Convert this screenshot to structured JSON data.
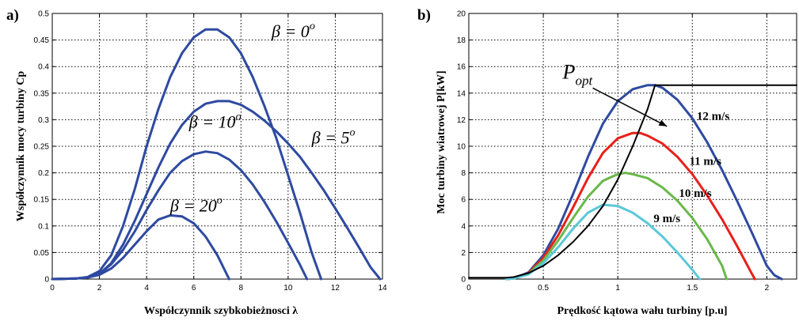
{
  "chart_data": [
    {
      "panel": "a)",
      "type": "line",
      "xlabel": "Współczynnik szybkobieżnosci  λ",
      "ylabel": "Współczynnik mocy turbiny Cp",
      "xlim": [
        0,
        14
      ],
      "ylim": [
        0,
        0.5
      ],
      "xticks": [
        0,
        2,
        4,
        6,
        8,
        10,
        12,
        14
      ],
      "yticks": [
        0,
        0.05,
        0.1,
        0.15,
        0.2,
        0.25,
        0.3,
        0.35,
        0.4,
        0.45,
        0.5
      ],
      "ytick_labels": [
        "0",
        "0.05",
        "0.1",
        "0.15",
        "0.2",
        "0.25",
        "0.3",
        "0.35",
        "0.4",
        "0.45",
        "0.5"
      ],
      "grid": true,
      "line_color": "#2e4aa0",
      "annotations": [
        {
          "text": "β = 0",
          "sup": "o",
          "x": 9.3,
          "y": 0.455
        },
        {
          "text": "β = 10",
          "sup": "o",
          "x": 5.8,
          "y": 0.285
        },
        {
          "text": "β = 5",
          "sup": "o",
          "x": 11.0,
          "y": 0.255
        },
        {
          "text": "β = 20",
          "sup": "o",
          "x": 5.0,
          "y": 0.127
        }
      ],
      "series": [
        {
          "x": [
            0,
            1,
            1.5,
            2,
            2.5,
            3,
            3.5,
            4,
            4.5,
            5,
            5.5,
            6,
            6.5,
            7,
            7.5,
            8,
            8.5,
            9,
            9.5,
            10,
            10.5,
            11,
            11.4
          ],
          "values": [
            0,
            0.001,
            0.004,
            0.015,
            0.045,
            0.1,
            0.17,
            0.25,
            0.32,
            0.38,
            0.425,
            0.455,
            0.47,
            0.47,
            0.455,
            0.425,
            0.38,
            0.325,
            0.265,
            0.195,
            0.125,
            0.05,
            0
          ]
        },
        {
          "x": [
            0,
            1,
            1.5,
            2,
            2.5,
            3,
            3.5,
            4,
            4.5,
            5,
            5.5,
            6,
            6.5,
            7,
            7.5,
            8,
            8.5,
            9,
            9.5,
            10,
            10.5,
            11,
            11.5,
            12,
            12.5,
            13,
            13.5,
            13.9
          ],
          "values": [
            0,
            0.001,
            0.003,
            0.01,
            0.03,
            0.065,
            0.11,
            0.16,
            0.21,
            0.255,
            0.29,
            0.315,
            0.33,
            0.335,
            0.335,
            0.328,
            0.315,
            0.298,
            0.278,
            0.255,
            0.23,
            0.2,
            0.168,
            0.133,
            0.097,
            0.06,
            0.022,
            0
          ]
        },
        {
          "x": [
            0,
            1,
            1.5,
            2,
            2.5,
            3,
            3.5,
            4,
            4.5,
            5,
            5.5,
            6,
            6.5,
            7,
            7.5,
            8,
            8.5,
            9,
            9.5,
            10,
            10.5,
            10.8
          ],
          "values": [
            0,
            0.001,
            0.003,
            0.01,
            0.028,
            0.055,
            0.09,
            0.13,
            0.167,
            0.2,
            0.222,
            0.235,
            0.24,
            0.237,
            0.225,
            0.205,
            0.178,
            0.145,
            0.108,
            0.068,
            0.027,
            0
          ]
        },
        {
          "x": [
            0,
            1,
            1.5,
            2,
            2.5,
            3,
            3.5,
            4,
            4.5,
            5,
            5.5,
            6,
            6.5,
            7,
            7.5
          ],
          "values": [
            0,
            0.001,
            0.003,
            0.008,
            0.02,
            0.04,
            0.065,
            0.09,
            0.112,
            0.12,
            0.118,
            0.105,
            0.08,
            0.045,
            0
          ]
        }
      ]
    },
    {
      "panel": "b)",
      "type": "line",
      "xlabel": "Prędkość kątowa wału turbiny [p.u]",
      "ylabel": "Moc turbiny wiatrowej P[kW]",
      "xlim": [
        0,
        2.2
      ],
      "ylim": [
        0,
        20
      ],
      "xticks": [
        0,
        0.5,
        1,
        1.5,
        2
      ],
      "xtick_labels": [
        "0",
        "0.5",
        "1",
        "1.5",
        "2"
      ],
      "yticks": [
        0,
        2,
        4,
        6,
        8,
        10,
        12,
        14,
        16,
        18,
        20
      ],
      "ytick_labels": [
        "0",
        "2",
        "4",
        "6",
        "8",
        "10",
        "12",
        "14",
        "16",
        "18",
        "20"
      ],
      "grid": true,
      "annotations": [
        {
          "text": "P",
          "sub": "opt",
          "x": 0.63,
          "y": 15.1,
          "arrow_to": [
            1.33,
            11.5
          ]
        },
        {
          "text": "12 m/s",
          "x": 1.53,
          "y": 12.0
        },
        {
          "text": "11 m/s",
          "x": 1.48,
          "y": 8.6
        },
        {
          "text": "10 m/s",
          "x": 1.41,
          "y": 6.2
        },
        {
          "text": "9 m/s",
          "x": 1.24,
          "y": 4.3
        }
      ],
      "series": [
        {
          "color": "#2e4aa0",
          "x": [
            0.25,
            0.3,
            0.4,
            0.5,
            0.6,
            0.7,
            0.8,
            0.9,
            1.0,
            1.1,
            1.2,
            1.25,
            1.3,
            1.4,
            1.5,
            1.6,
            1.7,
            1.8,
            1.9,
            2.0,
            2.05,
            2.1
          ],
          "values": [
            0,
            0.05,
            0.5,
            1.8,
            3.8,
            6.4,
            9.2,
            11.7,
            13.4,
            14.3,
            14.6,
            14.6,
            14.4,
            13.5,
            12.1,
            10.3,
            8.2,
            5.9,
            3.5,
            1.0,
            0.3,
            0
          ]
        },
        {
          "color": "#e8201a",
          "x": [
            0.25,
            0.3,
            0.4,
            0.5,
            0.6,
            0.7,
            0.8,
            0.9,
            1.0,
            1.1,
            1.15,
            1.2,
            1.3,
            1.4,
            1.5,
            1.6,
            1.7,
            1.8,
            1.9,
            1.92
          ],
          "values": [
            0,
            0.05,
            0.45,
            1.6,
            3.3,
            5.4,
            7.6,
            9.5,
            10.6,
            11.0,
            11.0,
            10.8,
            10.2,
            9.2,
            7.9,
            6.3,
            4.5,
            2.5,
            0.4,
            0
          ]
        },
        {
          "color": "#6ab84a",
          "x": [
            0.25,
            0.3,
            0.4,
            0.5,
            0.6,
            0.7,
            0.8,
            0.9,
            1.0,
            1.05,
            1.1,
            1.2,
            1.3,
            1.4,
            1.5,
            1.6,
            1.7,
            1.73
          ],
          "values": [
            0,
            0.05,
            0.4,
            1.4,
            2.9,
            4.6,
            6.2,
            7.4,
            7.9,
            8.0,
            7.9,
            7.6,
            6.9,
            5.9,
            4.6,
            3.0,
            1.0,
            0
          ]
        },
        {
          "color": "#5bc8d8",
          "x": [
            0.25,
            0.3,
            0.4,
            0.5,
            0.6,
            0.7,
            0.8,
            0.9,
            1.0,
            1.1,
            1.2,
            1.3,
            1.4,
            1.5,
            1.55
          ],
          "values": [
            0,
            0.05,
            0.35,
            1.2,
            2.4,
            3.8,
            5.0,
            5.6,
            5.5,
            5.0,
            4.2,
            3.2,
            2.0,
            0.7,
            0
          ]
        },
        {
          "color": "#000000",
          "x": [
            0,
            0.25,
            0.3,
            0.4,
            0.5,
            0.6,
            0.7,
            0.8,
            0.9,
            1.0,
            1.1,
            1.2,
            1.25,
            1.5,
            1.75,
            2.0,
            2.2
          ],
          "values": [
            0.1,
            0.1,
            0.15,
            0.45,
            1.0,
            1.8,
            2.8,
            4.0,
            5.5,
            7.5,
            10.0,
            12.8,
            14.6,
            14.6,
            14.6,
            14.6,
            14.6
          ]
        }
      ]
    }
  ]
}
